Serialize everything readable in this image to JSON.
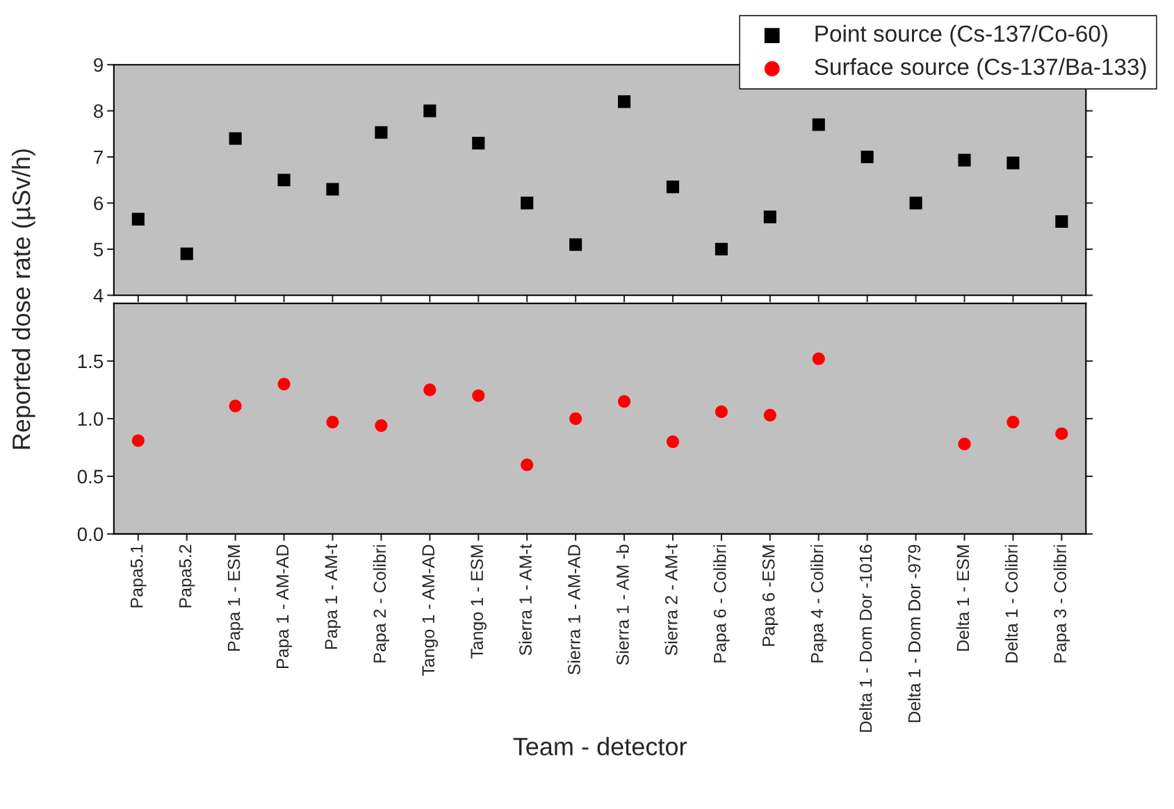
{
  "chart_data": [
    {
      "type": "scatter",
      "ylabel": "Reported dose rate (µSv/h)",
      "legend": "top right",
      "tick_labels": "y",
      "grid": false,
      "categories": [
        null,
        null,
        null,
        null,
        null,
        null,
        null,
        null,
        null,
        null,
        null,
        null,
        null,
        null,
        null,
        null,
        null,
        null,
        null,
        null
      ],
      "ylim": [
        4,
        9
      ],
      "yticks": [
        4,
        5,
        6,
        7,
        8,
        9
      ],
      "series": [
        {
          "name": "Point source (Cs-137/Co-60)",
          "color": "#000000",
          "marker": "square",
          "values": [
            5.65,
            4.9,
            7.4,
            6.5,
            6.3,
            7.53,
            8.0,
            7.3,
            6.0,
            5.1,
            8.2,
            6.35,
            5.0,
            5.7,
            7.7,
            7.0,
            6.0,
            6.93,
            6.87,
            5.6
          ]
        }
      ]
    },
    {
      "type": "scatter",
      "xlabel": "Team - detector",
      "grid": false,
      "categories": [
        "Papa5.1",
        "Papa5.2",
        "Papa 1 - ESM",
        "Papa 1 - AM-AD",
        "Papa 1 - AM-t",
        "Papa 2 - Colibri",
        "Tango 1 - AM-AD",
        "Tango 1 - ESM",
        "Sierra 1 - AM-t",
        "Sierra 1 - AM-AD",
        "Sierra 1 - AM -b",
        "Sierra 2 - AM-t",
        "Papa 6 - Colibri",
        "Papa 6 -ESM",
        "Papa 4 - Colibri",
        "Delta 1 - Dom Dor -1016",
        "Delta 1 - Dom Dor -979",
        "Delta 1 - ESM",
        "Delta 1 - Colibri",
        "Papa 3 - Colibri"
      ],
      "ylim": [
        0,
        2.0
      ],
      "yticks": [
        {
          "value": 0,
          "label": "0.0"
        },
        0.5,
        {
          "value": 1,
          "label": "1.0"
        },
        1.5
      ],
      "series": [
        {
          "name": "Surface source (Cs-137/Ba-133)",
          "color": "#ff0000",
          "marker": "circle",
          "values": [
            0.81,
            null,
            1.11,
            1.3,
            0.97,
            0.94,
            1.25,
            1.2,
            0.6,
            1.0,
            1.15,
            0.8,
            1.06,
            1.03,
            1.52,
            null,
            null,
            0.78,
            0.97,
            0.87
          ]
        }
      ]
    }
  ]
}
